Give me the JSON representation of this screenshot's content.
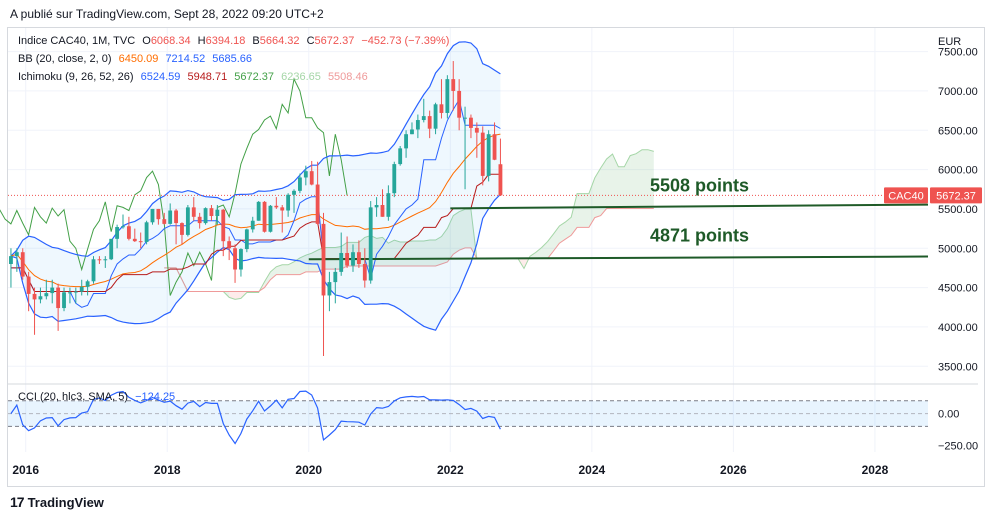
{
  "header": {
    "published": "A publié sur TradingView.com, Sept 28, 2022 09:20 UTC+2"
  },
  "legend": {
    "main": {
      "name": "Indice CAC40, 1M, TVC",
      "o_label": "O",
      "o": "6068.34",
      "h_label": "H",
      "h": "6394.18",
      "l_label": "B",
      "l": "5664.32",
      "c_label": "C",
      "c": "5672.37",
      "change": "−452.73 (−7.39%)"
    },
    "bb": {
      "name": "BB (20, close, 2, 0)",
      "basis": "6450.09",
      "upper": "7214.52",
      "lower": "5685.66"
    },
    "ichimoku": {
      "name": "Ichimoku (9, 26, 52, 26)",
      "v1": "6524.59",
      "v2": "5948.71",
      "v3": "5672.37",
      "v4": "6236.65",
      "v5": "5508.46"
    },
    "cci": {
      "name": "CCI (20, hlc3, SMA, 5)",
      "value": "−124.25"
    }
  },
  "axis": {
    "currency": "EUR",
    "price_ticks": [
      "7500.00",
      "7000.00",
      "6500.00",
      "6000.00",
      "5500.00",
      "5000.00",
      "4500.00",
      "4000.00",
      "3500.00"
    ],
    "cci_ticks": [
      "0.00",
      "−250.00"
    ],
    "year_ticks": [
      "2016",
      "2018",
      "2020",
      "2022",
      "2024",
      "2026",
      "2028"
    ]
  },
  "price_tag": {
    "symbol": "CAC40",
    "value": "5672.37"
  },
  "annotations": [
    {
      "text": "5508 points",
      "price": 5520
    },
    {
      "text": "4871 points",
      "price": 4880
    }
  ],
  "brand": {
    "name": "TradingView"
  },
  "colors": {
    "up": "#26a69a",
    "down": "#ef5350",
    "bb": "#2962ff",
    "bb_basis": "#ff6d00",
    "tenkan": "#2962ff",
    "kijun": "#b71c1c",
    "chikou": "#43a047",
    "annotation": "#1e5a28"
  },
  "chart_data": {
    "type": "candlestick",
    "title": "Indice CAC40, 1M, TVC",
    "x_range": [
      "2015-10",
      "2028-10"
    ],
    "y_range": [
      3300,
      7800
    ],
    "cci_range": [
      -300,
      200
    ],
    "candles": [
      {
        "d": "2015-10",
        "o": 4800,
        "h": 5000,
        "l": 4500,
        "c": 4900
      },
      {
        "d": "2015-11",
        "o": 4900,
        "h": 5000,
        "l": 4700,
        "c": 4950
      },
      {
        "d": "2015-12",
        "o": 4950,
        "h": 5000,
        "l": 4600,
        "c": 4640
      },
      {
        "d": "2016-01",
        "o": 4640,
        "h": 4700,
        "l": 4200,
        "c": 4420
      },
      {
        "d": "2016-02",
        "o": 4420,
        "h": 4500,
        "l": 3900,
        "c": 4350
      },
      {
        "d": "2016-03",
        "o": 4350,
        "h": 4500,
        "l": 4300,
        "c": 4390
      },
      {
        "d": "2016-04",
        "o": 4390,
        "h": 4600,
        "l": 4350,
        "c": 4430
      },
      {
        "d": "2016-05",
        "o": 4430,
        "h": 4600,
        "l": 4300,
        "c": 4500
      },
      {
        "d": "2016-06",
        "o": 4500,
        "h": 4550,
        "l": 3950,
        "c": 4240
      },
      {
        "d": "2016-07",
        "o": 4240,
        "h": 4500,
        "l": 4200,
        "c": 4440
      },
      {
        "d": "2016-08",
        "o": 4440,
        "h": 4500,
        "l": 4300,
        "c": 4440
      },
      {
        "d": "2016-09",
        "o": 4440,
        "h": 4500,
        "l": 4300,
        "c": 4450
      },
      {
        "d": "2016-10",
        "o": 4450,
        "h": 4600,
        "l": 4400,
        "c": 4510
      },
      {
        "d": "2016-11",
        "o": 4510,
        "h": 4600,
        "l": 4400,
        "c": 4580
      },
      {
        "d": "2016-12",
        "o": 4580,
        "h": 4900,
        "l": 4550,
        "c": 4860
      },
      {
        "d": "2017-01",
        "o": 4860,
        "h": 4900,
        "l": 4800,
        "c": 4850
      },
      {
        "d": "2017-02",
        "o": 4850,
        "h": 4900,
        "l": 4750,
        "c": 4860
      },
      {
        "d": "2017-03",
        "o": 4860,
        "h": 5100,
        "l": 4850,
        "c": 5120
      },
      {
        "d": "2017-04",
        "o": 5120,
        "h": 5300,
        "l": 5000,
        "c": 5270
      },
      {
        "d": "2017-05",
        "o": 5270,
        "h": 5430,
        "l": 5250,
        "c": 5280
      },
      {
        "d": "2017-06",
        "o": 5280,
        "h": 5400,
        "l": 5100,
        "c": 5120
      },
      {
        "d": "2017-07",
        "o": 5120,
        "h": 5250,
        "l": 5080,
        "c": 5090
      },
      {
        "d": "2017-08",
        "o": 5090,
        "h": 5200,
        "l": 5000,
        "c": 5080
      },
      {
        "d": "2017-09",
        "o": 5080,
        "h": 5350,
        "l": 5050,
        "c": 5330
      },
      {
        "d": "2017-10",
        "o": 5330,
        "h": 5500,
        "l": 5300,
        "c": 5500
      },
      {
        "d": "2017-11",
        "o": 5500,
        "h": 5500,
        "l": 5300,
        "c": 5370
      },
      {
        "d": "2017-12",
        "o": 5370,
        "h": 5450,
        "l": 5300,
        "c": 5310
      },
      {
        "d": "2018-01",
        "o": 5310,
        "h": 5570,
        "l": 5300,
        "c": 5480
      },
      {
        "d": "2018-02",
        "o": 5480,
        "h": 5500,
        "l": 5050,
        "c": 5320
      },
      {
        "d": "2018-03",
        "o": 5320,
        "h": 5330,
        "l": 5050,
        "c": 5170
      },
      {
        "d": "2018-04",
        "o": 5170,
        "h": 5550,
        "l": 5150,
        "c": 5520
      },
      {
        "d": "2018-05",
        "o": 5520,
        "h": 5650,
        "l": 5350,
        "c": 5400
      },
      {
        "d": "2018-06",
        "o": 5400,
        "h": 5450,
        "l": 5250,
        "c": 5320
      },
      {
        "d": "2018-07",
        "o": 5320,
        "h": 5520,
        "l": 5300,
        "c": 5510
      },
      {
        "d": "2018-08",
        "o": 5510,
        "h": 5550,
        "l": 5350,
        "c": 5410
      },
      {
        "d": "2018-09",
        "o": 5410,
        "h": 5550,
        "l": 5300,
        "c": 5490
      },
      {
        "d": "2018-10",
        "o": 5490,
        "h": 5500,
        "l": 4900,
        "c": 5090
      },
      {
        "d": "2018-11",
        "o": 5090,
        "h": 5150,
        "l": 4850,
        "c": 5000
      },
      {
        "d": "2018-12",
        "o": 5000,
        "h": 5050,
        "l": 4560,
        "c": 4730
      },
      {
        "d": "2019-01",
        "o": 4730,
        "h": 5000,
        "l": 4640,
        "c": 4990
      },
      {
        "d": "2019-02",
        "o": 4990,
        "h": 5250,
        "l": 4950,
        "c": 5240
      },
      {
        "d": "2019-03",
        "o": 5240,
        "h": 5400,
        "l": 5200,
        "c": 5350
      },
      {
        "d": "2019-04",
        "o": 5350,
        "h": 5600,
        "l": 5350,
        "c": 5590
      },
      {
        "d": "2019-05",
        "o": 5590,
        "h": 5600,
        "l": 5200,
        "c": 5210
      },
      {
        "d": "2019-06",
        "o": 5210,
        "h": 5550,
        "l": 5200,
        "c": 5540
      },
      {
        "d": "2019-07",
        "o": 5540,
        "h": 5650,
        "l": 5500,
        "c": 5520
      },
      {
        "d": "2019-08",
        "o": 5520,
        "h": 5550,
        "l": 5200,
        "c": 5480
      },
      {
        "d": "2019-09",
        "o": 5480,
        "h": 5700,
        "l": 5400,
        "c": 5680
      },
      {
        "d": "2019-10",
        "o": 5680,
        "h": 5750,
        "l": 5450,
        "c": 5730
      },
      {
        "d": "2019-11",
        "o": 5730,
        "h": 5950,
        "l": 5700,
        "c": 5900
      },
      {
        "d": "2019-12",
        "o": 5900,
        "h": 6050,
        "l": 5800,
        "c": 5980
      },
      {
        "d": "2020-01",
        "o": 5980,
        "h": 6110,
        "l": 5800,
        "c": 5810
      },
      {
        "d": "2020-02",
        "o": 5810,
        "h": 6100,
        "l": 5300,
        "c": 5310
      },
      {
        "d": "2020-03",
        "o": 5310,
        "h": 5450,
        "l": 3630,
        "c": 4400
      },
      {
        "d": "2020-04",
        "o": 4400,
        "h": 4700,
        "l": 4200,
        "c": 4570
      },
      {
        "d": "2020-05",
        "o": 4570,
        "h": 4750,
        "l": 4300,
        "c": 4700
      },
      {
        "d": "2020-06",
        "o": 4700,
        "h": 5200,
        "l": 4650,
        "c": 4940
      },
      {
        "d": "2020-07",
        "o": 4940,
        "h": 5150,
        "l": 4750,
        "c": 4780
      },
      {
        "d": "2020-08",
        "o": 4780,
        "h": 5050,
        "l": 4700,
        "c": 4950
      },
      {
        "d": "2020-09",
        "o": 4950,
        "h": 5100,
        "l": 4750,
        "c": 4800
      },
      {
        "d": "2020-10",
        "o": 4800,
        "h": 5000,
        "l": 4500,
        "c": 4590
      },
      {
        "d": "2020-11",
        "o": 4590,
        "h": 5600,
        "l": 4550,
        "c": 5520
      },
      {
        "d": "2020-12",
        "o": 5520,
        "h": 5650,
        "l": 5400,
        "c": 5550
      },
      {
        "d": "2021-01",
        "o": 5550,
        "h": 5750,
        "l": 5400,
        "c": 5400
      },
      {
        "d": "2021-02",
        "o": 5400,
        "h": 5800,
        "l": 5350,
        "c": 5700
      },
      {
        "d": "2021-03",
        "o": 5700,
        "h": 6100,
        "l": 5650,
        "c": 6070
      },
      {
        "d": "2021-04",
        "o": 6070,
        "h": 6300,
        "l": 6050,
        "c": 6270
      },
      {
        "d": "2021-05",
        "o": 6270,
        "h": 6500,
        "l": 6150,
        "c": 6450
      },
      {
        "d": "2021-06",
        "o": 6450,
        "h": 6600,
        "l": 6450,
        "c": 6510
      },
      {
        "d": "2021-07",
        "o": 6510,
        "h": 6700,
        "l": 6400,
        "c": 6630
      },
      {
        "d": "2021-08",
        "o": 6630,
        "h": 6900,
        "l": 6600,
        "c": 6680
      },
      {
        "d": "2021-09",
        "o": 6680,
        "h": 6750,
        "l": 6400,
        "c": 6520
      },
      {
        "d": "2021-10",
        "o": 6520,
        "h": 6850,
        "l": 6450,
        "c": 6830
      },
      {
        "d": "2021-11",
        "o": 6830,
        "h": 7150,
        "l": 6650,
        "c": 6720
      },
      {
        "d": "2021-12",
        "o": 6720,
        "h": 7200,
        "l": 6650,
        "c": 7150
      },
      {
        "d": "2022-01",
        "o": 7150,
        "h": 7380,
        "l": 6750,
        "c": 7000
      },
      {
        "d": "2022-02",
        "o": 7000,
        "h": 7150,
        "l": 6500,
        "c": 6660
      },
      {
        "d": "2022-03",
        "o": 6660,
        "h": 6800,
        "l": 5750,
        "c": 6660
      },
      {
        "d": "2022-04",
        "o": 6660,
        "h": 6700,
        "l": 6400,
        "c": 6530
      },
      {
        "d": "2022-05",
        "o": 6530,
        "h": 6600,
        "l": 6150,
        "c": 6470
      },
      {
        "d": "2022-06",
        "o": 6470,
        "h": 6550,
        "l": 5800,
        "c": 5920
      },
      {
        "d": "2022-07",
        "o": 5920,
        "h": 6500,
        "l": 5850,
        "c": 6450
      },
      {
        "d": "2022-08",
        "o": 6450,
        "h": 6600,
        "l": 6120,
        "c": 6125
      },
      {
        "d": "2022-09",
        "o": 6068.34,
        "h": 6394.18,
        "l": 5664.32,
        "c": 5672.37
      }
    ]
  }
}
